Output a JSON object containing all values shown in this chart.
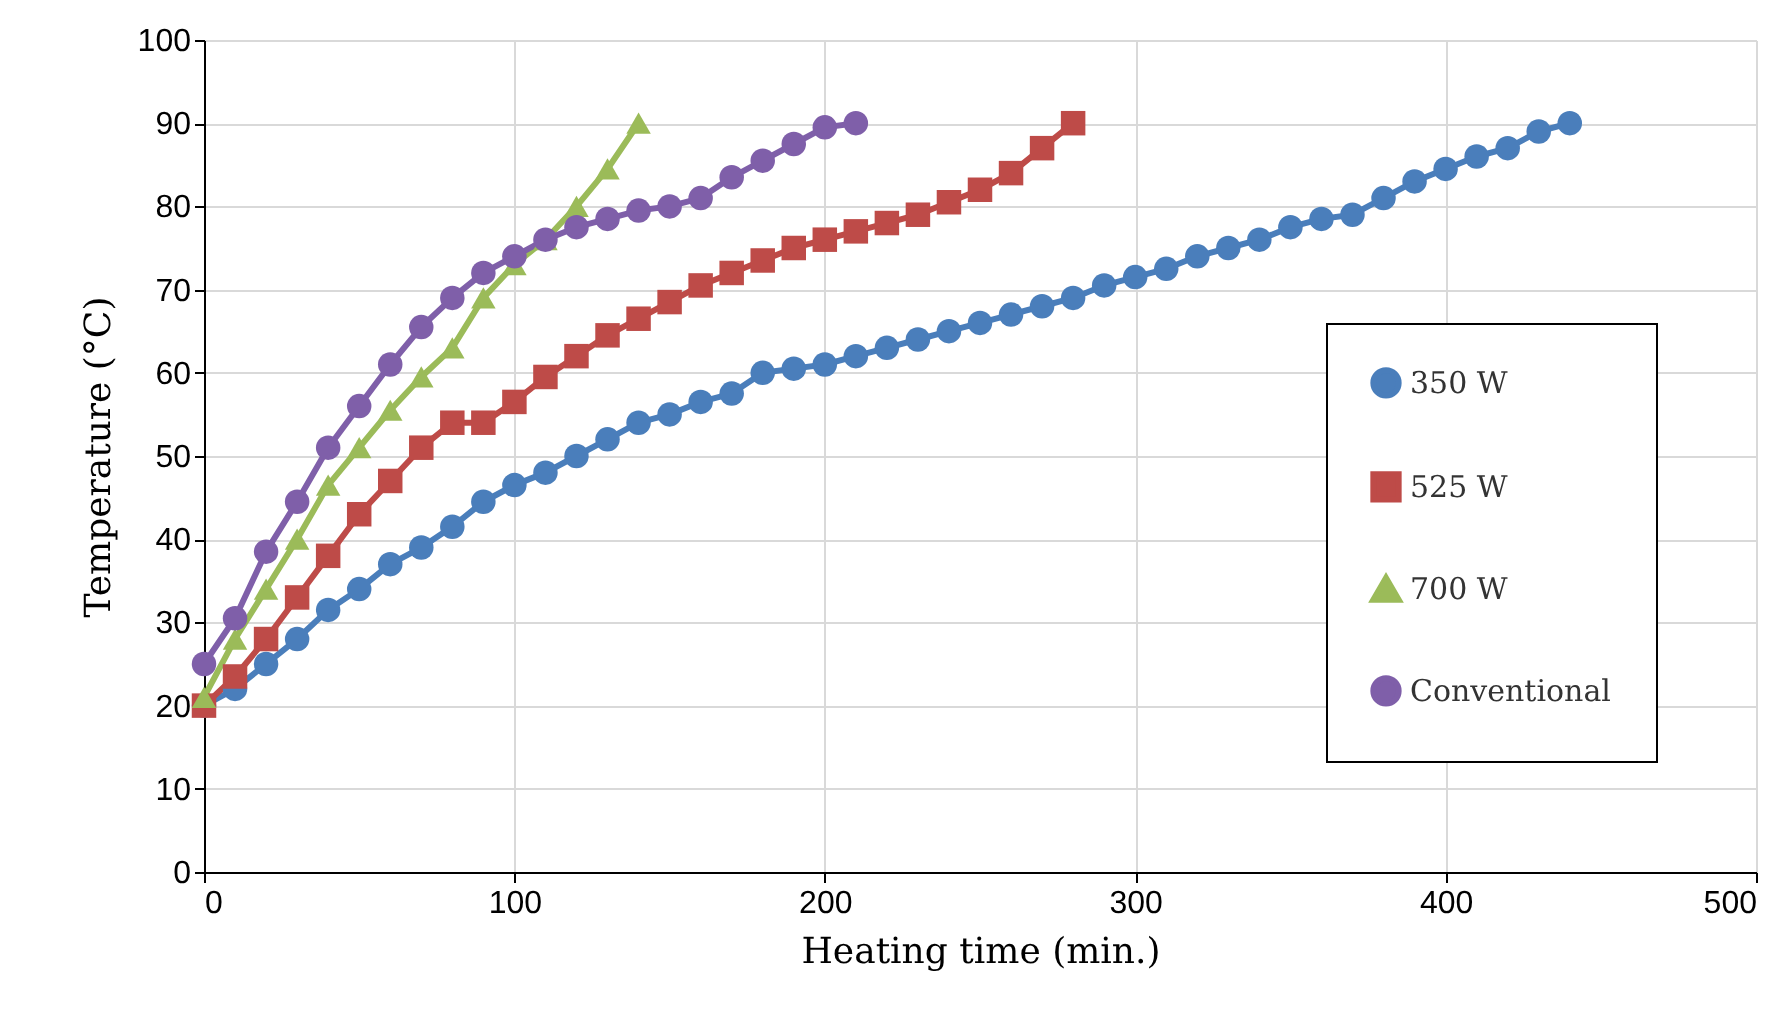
{
  "chart_data": {
    "type": "line",
    "xlabel": "Heating time (min.)",
    "ylabel": "Temperature (°C)",
    "xlim": [
      0,
      500
    ],
    "xticks": [
      0,
      100,
      200,
      300,
      400,
      500
    ],
    "ylim": [
      0,
      100
    ],
    "yticks": [
      0,
      10,
      20,
      30,
      40,
      50,
      60,
      70,
      80,
      90,
      100
    ],
    "grid": true,
    "legend": "right",
    "series": [
      {
        "name": "350 W",
        "color": "#4a7ebb",
        "marker": "circle",
        "x": [
          0,
          10,
          20,
          30,
          40,
          50,
          60,
          70,
          80,
          90,
          100,
          110,
          120,
          130,
          140,
          150,
          160,
          170,
          180,
          190,
          200,
          210,
          220,
          230,
          240,
          250,
          260,
          270,
          280,
          290,
          300,
          310,
          320,
          330,
          340,
          350,
          360,
          370,
          380,
          390,
          400,
          410,
          420,
          430,
          440
        ],
        "values": [
          20,
          22,
          25,
          28,
          31.5,
          34,
          37,
          39,
          41.5,
          44.5,
          46.5,
          48,
          50,
          52,
          54,
          55,
          56.5,
          57.5,
          60,
          60.5,
          61,
          62,
          63,
          64,
          65,
          66,
          67,
          68,
          69,
          70.5,
          71.5,
          72.5,
          74,
          75,
          76,
          77.5,
          78.5,
          79,
          81,
          83,
          84.5,
          86,
          87,
          89,
          90
        ]
      },
      {
        "name": "525 W",
        "color": "#be4b48",
        "marker": "square",
        "x": [
          0,
          10,
          20,
          30,
          40,
          50,
          60,
          70,
          80,
          90,
          100,
          110,
          120,
          130,
          140,
          150,
          160,
          170,
          180,
          190,
          200,
          210,
          220,
          230,
          240,
          250,
          260,
          270,
          280
        ],
        "values": [
          20,
          23.5,
          28,
          33,
          38,
          43,
          47,
          51,
          54,
          54,
          56.5,
          59.5,
          62,
          64.5,
          66.5,
          68.5,
          70.5,
          72,
          73.5,
          75,
          76,
          77,
          78,
          79,
          80.5,
          82,
          84,
          87,
          90
        ]
      },
      {
        "name": "700 W",
        "color": "#9bbb59",
        "marker": "triangle",
        "x": [
          0,
          10,
          20,
          30,
          40,
          50,
          60,
          70,
          80,
          90,
          100,
          110,
          120,
          130,
          140
        ],
        "values": [
          21,
          28,
          34,
          40,
          46.5,
          51,
          55.5,
          59.5,
          63,
          69,
          73,
          76,
          80,
          84.5,
          90
        ]
      },
      {
        "name": "Conventional",
        "color": "#7f5fa9",
        "marker": "circle",
        "x": [
          0,
          10,
          20,
          30,
          40,
          50,
          60,
          70,
          80,
          90,
          100,
          110,
          120,
          130,
          140,
          150,
          160,
          170,
          180,
          190,
          200,
          210
        ],
        "values": [
          25,
          30.5,
          38.5,
          44.5,
          51,
          56,
          61,
          65.5,
          69,
          72,
          74,
          76,
          77.5,
          78.5,
          79.5,
          80,
          81,
          83.5,
          85.5,
          87.5,
          89.5,
          90
        ]
      }
    ]
  }
}
